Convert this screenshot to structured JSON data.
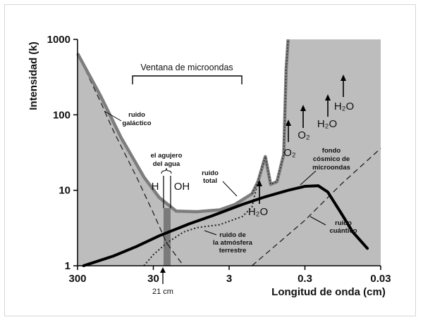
{
  "chart_data": {
    "type": "line",
    "xlabel": "Longitud de onda (cm)",
    "ylabel": "Intensidad (k)",
    "x_scale": "log",
    "y_scale": "log",
    "x_ticks": [
      {
        "value": 300,
        "label": "300"
      },
      {
        "value": 30,
        "label": "30"
      },
      {
        "value": 3,
        "label": "3"
      },
      {
        "value": 0.3,
        "label": "0.3"
      },
      {
        "value": 0.03,
        "label": "0.03"
      }
    ],
    "y_ticks": [
      {
        "value": 1,
        "label": "1"
      },
      {
        "value": 10,
        "label": "10"
      },
      {
        "value": 100,
        "label": "100"
      },
      {
        "value": 1000,
        "label": "1000"
      }
    ],
    "xlim": [
      300,
      0.03
    ],
    "ylim": [
      1,
      1000
    ],
    "grid": false,
    "series": [
      {
        "name": "ruido total",
        "style": "gray-thick",
        "points": [
          [
            300,
            650
          ],
          [
            150,
            180
          ],
          [
            80,
            50
          ],
          [
            40,
            15
          ],
          [
            25,
            8
          ],
          [
            15,
            5.3
          ],
          [
            8,
            5.2
          ],
          [
            4,
            5.5
          ],
          [
            2.5,
            6.5
          ],
          [
            1.5,
            9
          ],
          [
            1.25,
            13
          ],
          [
            1.0,
            28
          ],
          [
            0.85,
            12
          ],
          [
            0.7,
            13
          ],
          [
            0.57,
            30
          ],
          [
            0.53,
            400
          ],
          [
            0.5,
            1000
          ]
        ]
      },
      {
        "name": "fondo cósmico de microondas",
        "style": "black-thick",
        "points": [
          [
            250,
            1
          ],
          [
            100,
            1.35
          ],
          [
            50,
            1.8
          ],
          [
            25,
            2.5
          ],
          [
            10,
            3.6
          ],
          [
            5,
            4.6
          ],
          [
            2,
            6.5
          ],
          [
            1,
            8.2
          ],
          [
            0.5,
            10
          ],
          [
            0.3,
            11.3
          ],
          [
            0.2,
            11.5
          ],
          [
            0.15,
            9.5
          ],
          [
            0.1,
            5
          ],
          [
            0.07,
            2.8
          ],
          [
            0.045,
            1.7
          ]
        ]
      },
      {
        "name": "ruido galáctico",
        "style": "dashed",
        "points": [
          [
            300,
            650
          ],
          [
            150,
            150
          ],
          [
            100,
            60
          ],
          [
            50,
            15
          ],
          [
            30,
            5
          ],
          [
            20,
            2
          ],
          [
            12,
            1
          ]
        ]
      },
      {
        "name": "ruido cuántico",
        "style": "dashed",
        "points": [
          [
            1.5,
            1
          ],
          [
            0.3,
            4
          ],
          [
            0.1,
            12
          ],
          [
            0.03,
            36
          ]
        ]
      },
      {
        "name": "ruido de la atmósfera terrestre",
        "style": "dotted",
        "points": [
          [
            40,
            1
          ],
          [
            30,
            1.4
          ],
          [
            20,
            2
          ],
          [
            12,
            2.8
          ],
          [
            8,
            3.2
          ],
          [
            4,
            3.5
          ],
          [
            2,
            4.5
          ],
          [
            1.5,
            6
          ],
          [
            1.25,
            13
          ],
          [
            1.0,
            28
          ],
          [
            0.85,
            12
          ],
          [
            0.7,
            13
          ],
          [
            0.57,
            30
          ],
          [
            0.53,
            400
          ],
          [
            0.5,
            1000
          ]
        ]
      }
    ],
    "annotations": {
      "window_label": "Ventana de microondas",
      "water_hole": [
        "el agujero",
        "del agua"
      ],
      "h_label": "H",
      "oh_label": "OH",
      "galactic": [
        "ruido",
        "galáctico"
      ],
      "total": [
        "ruido",
        "total"
      ],
      "atmos": [
        "ruido de",
        "la atmósfera",
        "terrestre"
      ],
      "cmb": [
        "fondo",
        "cósmico de",
        "microondas"
      ],
      "quantum": [
        "ruido",
        "cuántico"
      ],
      "h2o_1": "H₂O",
      "o2_1": "O₂",
      "o2_2": "O₂",
      "h2o_2": "H₂O",
      "h2o_3": "H₂O",
      "cm21": "21 cm"
    }
  }
}
